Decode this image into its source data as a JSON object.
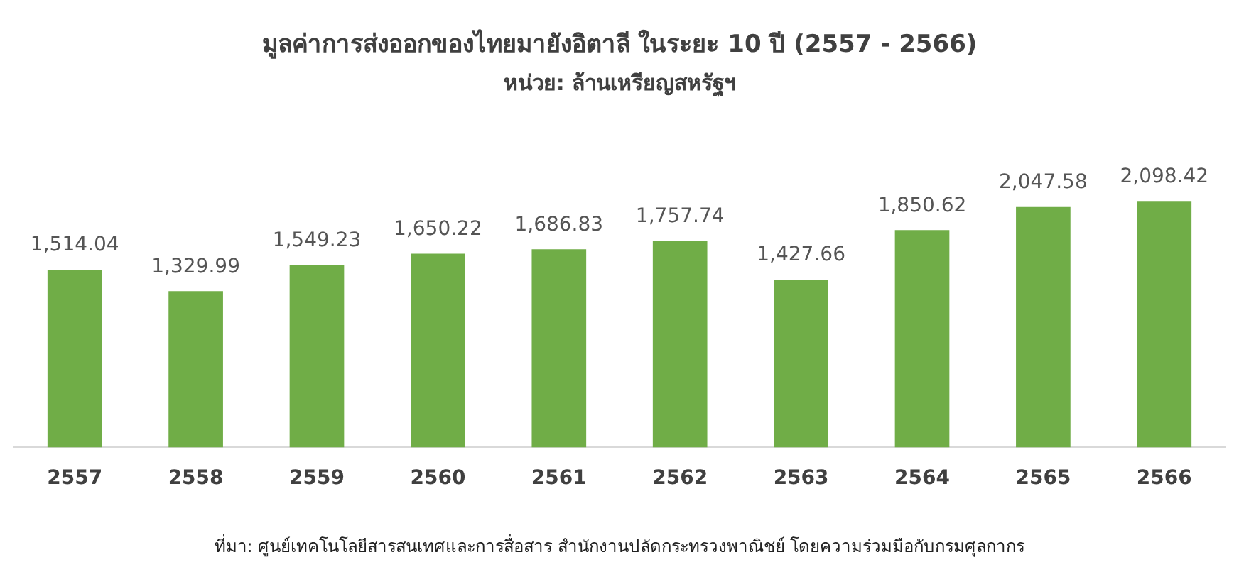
{
  "chart_data": {
    "type": "bar",
    "title": "มูลค่าการส่งออกของไทยมายังอิตาลี ในระยะ 10 ปี (2557 - 2566)",
    "subtitle": "หน่วย: ล้านเหรียญสหรัฐฯ",
    "categories": [
      "2557",
      "2558",
      "2559",
      "2560",
      "2561",
      "2562",
      "2563",
      "2564",
      "2565",
      "2566"
    ],
    "values": [
      1514.04,
      1329.99,
      1549.23,
      1650.22,
      1686.83,
      1757.74,
      1427.66,
      1850.62,
      2047.58,
      2098.42
    ],
    "value_labels": [
      "1,514.04",
      "1,329.99",
      "1,549.23",
      "1,650.22",
      "1,686.83",
      "1,757.74",
      "1,427.66",
      "1,850.62",
      "2,047.58",
      "2,098.42"
    ],
    "color": "#70ad47",
    "grid": false,
    "legend": false,
    "annotations": [
      "ที่มา: ศูนย์เทคโนโลยีสารสนเทศและการสื่อสาร สำนักงานปลัดกระทรวงพาณิชย์ โดยความร่วมมือกับกรมศุลกากร"
    ]
  }
}
